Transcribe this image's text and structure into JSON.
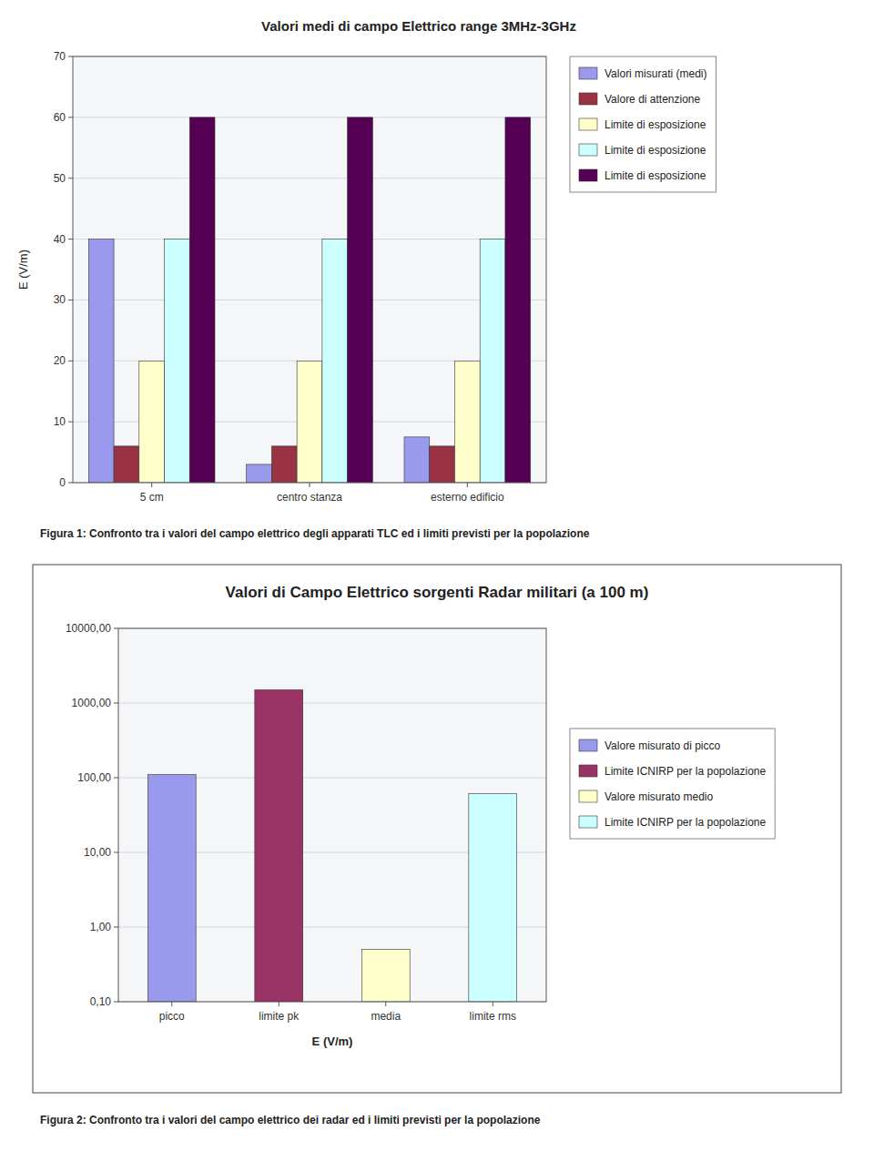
{
  "chart_data": [
    {
      "type": "bar",
      "title": "Valori medi di campo Elettrico range 3MHz-3GHz",
      "ylabel": "E (V/m)",
      "categories": [
        "5 cm",
        "centro stanza",
        "esterno edificio"
      ],
      "series": [
        {
          "name": "Valori misurati (medi)",
          "color": "#9999EE",
          "values": [
            40,
            3,
            7.5
          ]
        },
        {
          "name": "Valore di attenzione",
          "color": "#993344",
          "values": [
            6,
            6,
            6
          ]
        },
        {
          "name": "Limite di esposizione",
          "color": "#FFFFCC",
          "values": [
            20,
            20,
            20
          ]
        },
        {
          "name": "Limite di esposizione",
          "color": "#CCFFFF",
          "values": [
            40,
            40,
            40
          ]
        },
        {
          "name": "Limite di esposizione",
          "color": "#550055",
          "values": [
            60,
            60,
            60
          ]
        }
      ],
      "ylim": [
        0,
        70
      ],
      "yticks": [
        0,
        10,
        20,
        30,
        40,
        50,
        60,
        70
      ],
      "grid": true,
      "legend": "right",
      "caption": "Figura 1: Confronto tra i valori del campo elettrico degli apparati TLC ed i limiti previsti per la popolazione"
    },
    {
      "type": "bar",
      "title": "Valori di Campo Elettrico sorgenti Radar militari (a 100 m)",
      "xlabel": "E (V/m)",
      "categories": [
        "picco",
        "limite pk",
        "media",
        "limite rms"
      ],
      "series": [
        {
          "name": "Valore misurato di picco",
          "color": "#9999EE",
          "values": [
            110,
            null,
            null,
            null
          ]
        },
        {
          "name": "Limite ICNIRP per la popolazione",
          "color": "#993366",
          "values": [
            null,
            1500,
            null,
            null
          ]
        },
        {
          "name": "Valore misurato medio",
          "color": "#FFFFCC",
          "values": [
            null,
            null,
            0.5,
            null
          ]
        },
        {
          "name": "Limite ICNIRP per la popolazione",
          "color": "#CCFFFF",
          "values": [
            null,
            null,
            null,
            61
          ]
        }
      ],
      "log": "y",
      "ylim": [
        0.1,
        10000
      ],
      "yticks": [
        {
          "value": 0.1,
          "label": "0,10"
        },
        {
          "value": 1,
          "label": "1,00"
        },
        {
          "value": 10,
          "label": "10,00"
        },
        {
          "value": 100,
          "label": "100,00"
        },
        {
          "value": 1000,
          "label": "1000,00"
        },
        {
          "value": 10000,
          "label": "10000,00"
        }
      ],
      "grid": true,
      "legend": "right",
      "caption": "Figura 2: Confronto tra i valori del campo elettrico dei radar ed i limiti previsti per la popolazione"
    }
  ]
}
